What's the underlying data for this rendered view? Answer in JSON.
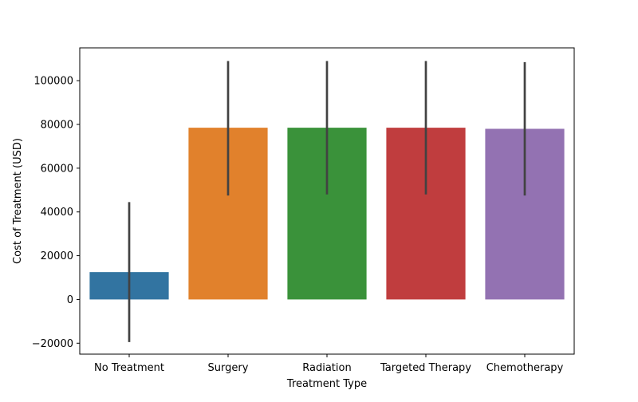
{
  "chart_data": {
    "type": "bar",
    "title": "",
    "xlabel": "Treatment Type",
    "ylabel": "Cost of Treatment (USD)",
    "categories": [
      "No Treatment",
      "Surgery",
      "Radiation",
      "Targeted Therapy",
      "Chemotherapy"
    ],
    "values": [
      12500,
      78500,
      78500,
      78500,
      78000
    ],
    "error_low": [
      -19500,
      47500,
      48000,
      48000,
      47500
    ],
    "error_high": [
      44500,
      109000,
      109000,
      109000,
      108500
    ],
    "colors": [
      "#3274a1",
      "#e1812c",
      "#3a923a",
      "#c03d3e",
      "#9372b2"
    ],
    "error_color": "#424242",
    "ylim": [
      -25000,
      115000
    ],
    "yticks": [
      -20000,
      0,
      20000,
      40000,
      60000,
      80000,
      100000
    ],
    "ytick_labels": [
      "−20000",
      "0",
      "20000",
      "40000",
      "60000",
      "80000",
      "100000"
    ],
    "grid": false,
    "legend": "none"
  }
}
